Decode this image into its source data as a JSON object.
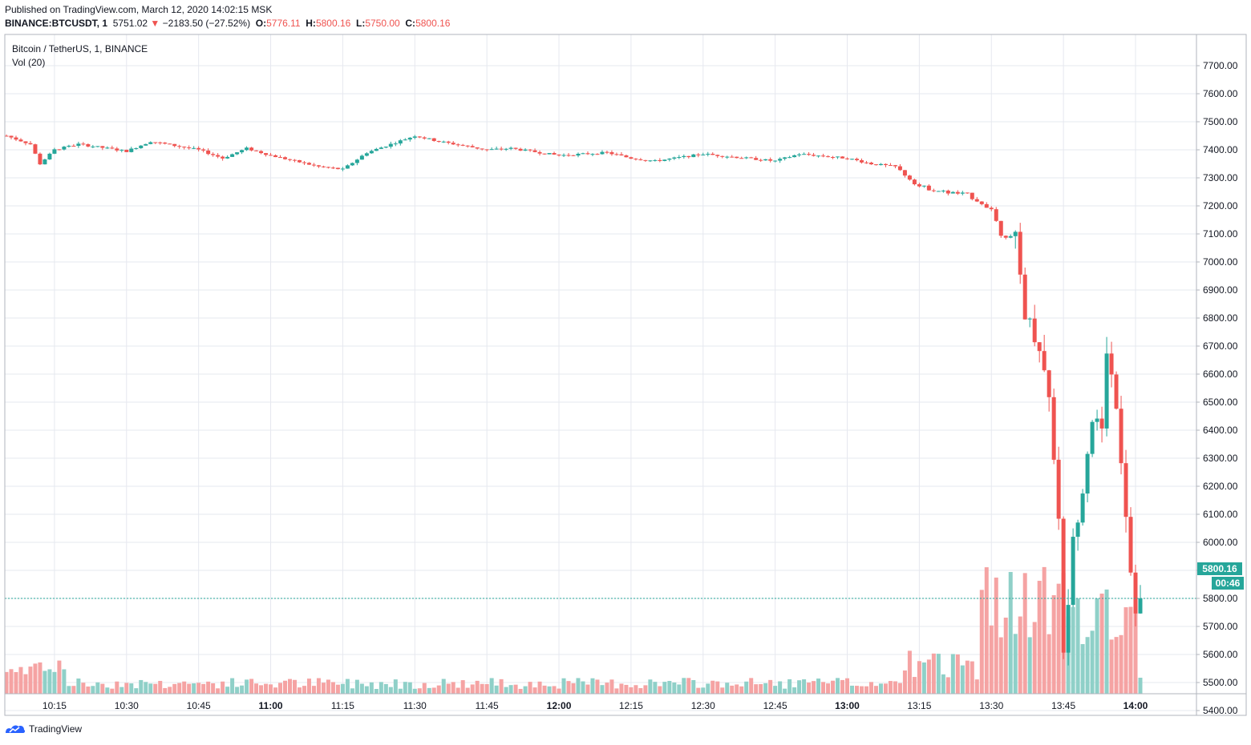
{
  "header": {
    "published": "Published on TradingView.com, March 12, 2020 14:02:15 MSK",
    "symbol": "BINANCE:BTCUSDT, 1",
    "last": "5751.02",
    "change": "−2183.50 (−27.52%)",
    "o_label": "O:",
    "o": "5776.11",
    "h_label": "H:",
    "h": "5800.16",
    "l_label": "L:",
    "l": "5750.00",
    "c_label": "C:",
    "c": "5800.16"
  },
  "legend": {
    "title": "Bitcoin / TetherUS, 1, BINANCE",
    "volume": "Vol (20)"
  },
  "price_tag": "5800.16",
  "countdown_tag": "00:46",
  "footer": {
    "brand": "TradingView",
    "logo_icon": "tradingview-logo-icon"
  },
  "colors": {
    "up": "#26a69a",
    "down": "#ef5350",
    "vol_up": "#8fd0c8",
    "vol_down": "#f5a3a3",
    "grid": "#e6e8ef",
    "price_line": "#26a69a"
  },
  "chart_data": {
    "type": "candlestick",
    "title": "Bitcoin / TetherUS, 1, BINANCE",
    "interval": "1 minute",
    "x_ticks": [
      "10:15",
      "10:30",
      "10:45",
      "11:00",
      "11:15",
      "11:30",
      "11:45",
      "12:00",
      "12:15",
      "12:30",
      "12:45",
      "13:00",
      "13:15",
      "13:30",
      "13:45",
      "14:00"
    ],
    "y_ticks": [
      "7700.00",
      "7600.00",
      "7500.00",
      "7400.00",
      "7300.00",
      "7200.00",
      "7100.00",
      "7000.00",
      "6900.00",
      "6800.00",
      "6700.00",
      "6600.00",
      "6500.00",
      "6400.00",
      "6300.00",
      "6200.00",
      "6100.00",
      "6000.00",
      "5900.00",
      "5800.00",
      "5700.00",
      "5600.00",
      "5500.00",
      "5400.00"
    ],
    "ylim": [
      5360,
      7710
    ],
    "grid": true,
    "last_price": 5800.16,
    "series": [
      {
        "name": "BTCUSDT price",
        "close_path": [
          {
            "t": "10:05",
            "p": 7450
          },
          {
            "t": "10:10",
            "p": 7420
          },
          {
            "t": "10:12",
            "p": 7350
          },
          {
            "t": "10:15",
            "p": 7400
          },
          {
            "t": "10:20",
            "p": 7420
          },
          {
            "t": "10:30",
            "p": 7395
          },
          {
            "t": "10:35",
            "p": 7430
          },
          {
            "t": "10:45",
            "p": 7400
          },
          {
            "t": "10:50",
            "p": 7370
          },
          {
            "t": "10:55",
            "p": 7405
          },
          {
            "t": "11:00",
            "p": 7380
          },
          {
            "t": "11:05",
            "p": 7360
          },
          {
            "t": "11:10",
            "p": 7340
          },
          {
            "t": "11:15",
            "p": 7330
          },
          {
            "t": "11:20",
            "p": 7390
          },
          {
            "t": "11:25",
            "p": 7420
          },
          {
            "t": "11:30",
            "p": 7450
          },
          {
            "t": "11:35",
            "p": 7430
          },
          {
            "t": "11:45",
            "p": 7400
          },
          {
            "t": "11:50",
            "p": 7405
          },
          {
            "t": "12:00",
            "p": 7380
          },
          {
            "t": "12:10",
            "p": 7390
          },
          {
            "t": "12:15",
            "p": 7370
          },
          {
            "t": "12:20",
            "p": 7360
          },
          {
            "t": "12:30",
            "p": 7385
          },
          {
            "t": "12:45",
            "p": 7360
          },
          {
            "t": "12:50",
            "p": 7385
          },
          {
            "t": "13:00",
            "p": 7370
          },
          {
            "t": "13:05",
            "p": 7350
          },
          {
            "t": "13:10",
            "p": 7340
          },
          {
            "t": "13:15",
            "p": 7270
          },
          {
            "t": "13:20",
            "p": 7250
          },
          {
            "t": "13:25",
            "p": 7240
          },
          {
            "t": "13:30",
            "p": 7190
          },
          {
            "t": "13:32",
            "p": 7100
          },
          {
            "t": "13:35",
            "p": 7080
          },
          {
            "t": "13:37",
            "p": 6820
          },
          {
            "t": "13:40",
            "p": 6700
          },
          {
            "t": "13:42",
            "p": 6520
          },
          {
            "t": "13:44",
            "p": 6100
          },
          {
            "t": "13:45",
            "p": 5590
          },
          {
            "t": "13:47",
            "p": 6000
          },
          {
            "t": "13:49",
            "p": 6200
          },
          {
            "t": "13:51",
            "p": 6450
          },
          {
            "t": "13:53",
            "p": 6390
          },
          {
            "t": "13:54",
            "p": 6690
          },
          {
            "t": "13:56",
            "p": 6500
          },
          {
            "t": "13:57",
            "p": 6300
          },
          {
            "t": "13:58",
            "p": 6110
          },
          {
            "t": "13:59",
            "p": 5900
          },
          {
            "t": "14:00",
            "p": 5770
          },
          {
            "t": "14:01",
            "p": 5800
          }
        ]
      },
      {
        "name": "Vol (20)",
        "note": "volume bars, scale not shown"
      }
    ]
  }
}
